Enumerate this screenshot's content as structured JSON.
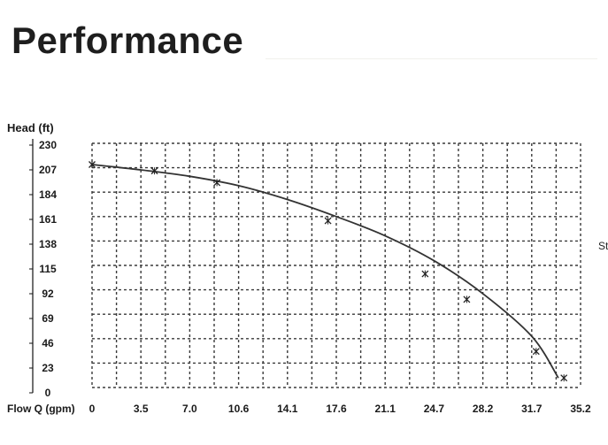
{
  "page": {
    "title": "Performance",
    "stray_text": "St"
  },
  "chart_data": {
    "type": "line",
    "title": "",
    "xlabel": "Flow Q (gpm)",
    "ylabel": "Head (ft)",
    "x_ticks": [
      "0",
      "3.5",
      "7.0",
      "10.6",
      "14.1",
      "17.6",
      "21.1",
      "24.7",
      "28.2",
      "31.7",
      "35.2"
    ],
    "y_ticks": [
      "230",
      "207",
      "184",
      "161",
      "138",
      "115",
      "92",
      "69",
      "46",
      "23",
      "0"
    ],
    "xlim": [
      0,
      35.2
    ],
    "ylim": [
      0,
      230
    ],
    "grid": true,
    "grid_style": "dashed",
    "series": [
      {
        "name": "",
        "x": [
          0,
          3.5,
          7.0,
          10.6,
          14.1,
          17.6,
          21.1,
          24.7,
          28.2,
          31.7,
          33.6
        ],
        "y": [
          210,
          205,
          199,
          190,
          177,
          161,
          143,
          119,
          88,
          48,
          9
        ],
        "markers": true,
        "marker_x": [
          0,
          4.5,
          9.0,
          17.0,
          24.0,
          27.0,
          32.0,
          34.0
        ],
        "marker_y": [
          210,
          204,
          193,
          157,
          107,
          83,
          34,
          9
        ]
      }
    ],
    "colors": {
      "line": "#333333",
      "grid": "#3a3a3a",
      "axis": "#111111"
    }
  }
}
